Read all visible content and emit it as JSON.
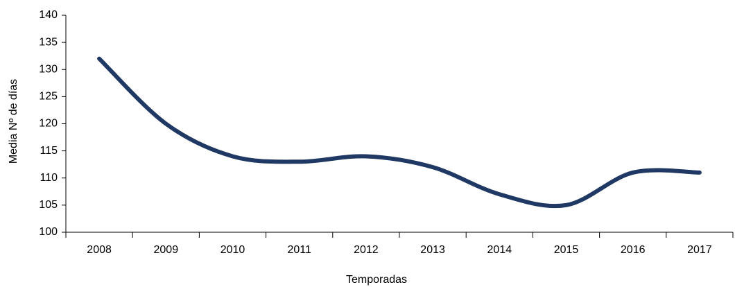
{
  "chart_data": {
    "type": "line",
    "x_label": "Temporadas",
    "y_label": "Media Nº de días",
    "categories": [
      "2008",
      "2009",
      "2010",
      "2011",
      "2012",
      "2013",
      "2014",
      "2015",
      "2016",
      "2017"
    ],
    "series": [
      {
        "name": "Media",
        "color": "#203864",
        "values": [
          132,
          120,
          114,
          113,
          114,
          112,
          107,
          105,
          111,
          111
        ]
      }
    ],
    "ylim": [
      100,
      140
    ],
    "yticks": [
      100,
      105,
      110,
      115,
      120,
      125,
      130,
      135,
      140
    ],
    "smooth": true,
    "legend": false
  }
}
